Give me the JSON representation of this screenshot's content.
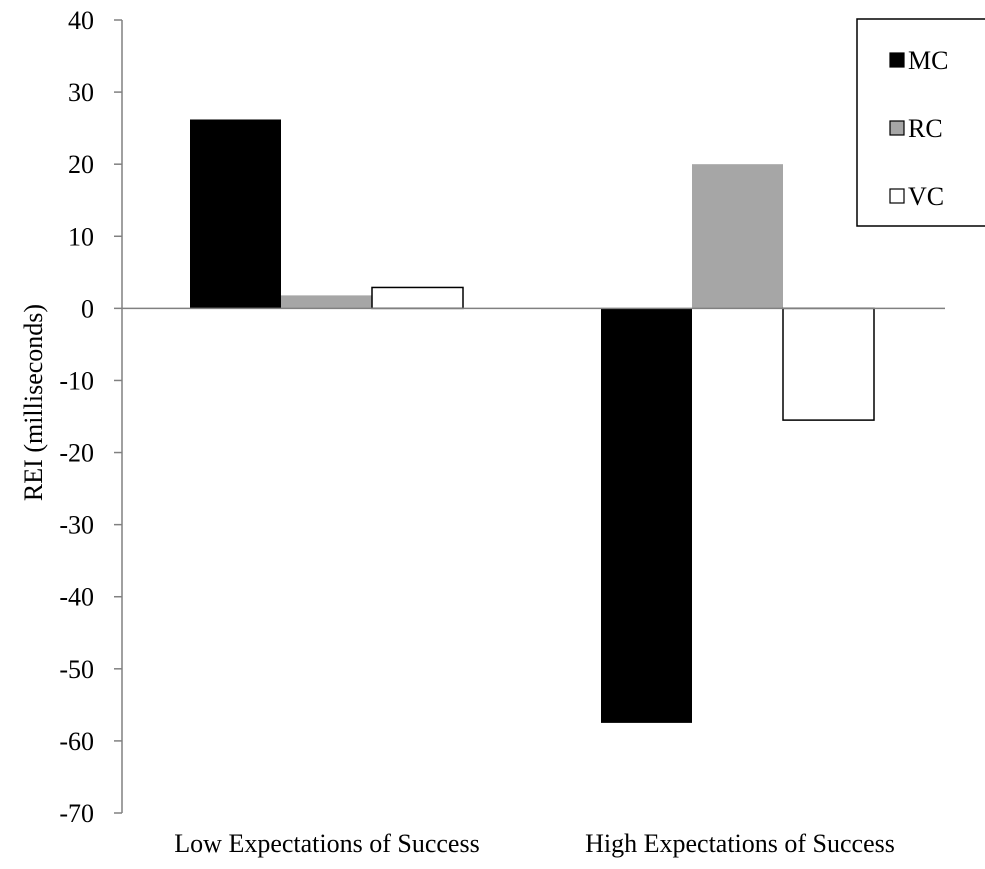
{
  "chart_data": {
    "type": "bar",
    "title": "",
    "xlabel": "",
    "ylabel": "REI (milliseconds)",
    "categories": [
      "Low Expectations of Success",
      "High Expectations of Success"
    ],
    "series": [
      {
        "name": "MC",
        "values": [
          26.2,
          -57.5
        ],
        "color": "#000000"
      },
      {
        "name": "RC",
        "values": [
          1.8,
          20.0
        ],
        "color": "#a6a6a6"
      },
      {
        "name": "VC",
        "values": [
          2.9,
          -15.5
        ],
        "color": "#ffffff"
      }
    ],
    "ylim": [
      -70,
      40
    ],
    "yticks": [
      "40",
      "30",
      "20",
      "10",
      "0",
      "-10",
      "-20",
      "-30",
      "-40",
      "-50",
      "-60",
      "-70"
    ],
    "legend": {
      "placement": "top-right"
    },
    "grid": false
  }
}
